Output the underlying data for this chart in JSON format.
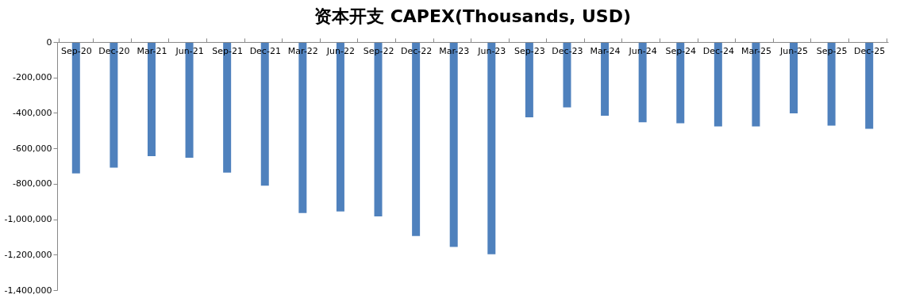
{
  "chart_data": {
    "type": "bar",
    "title": "资本开支 CAPEX(Thousands, USD)",
    "categories": [
      "Sep-20",
      "Dec-20",
      "Mar-21",
      "Jun-21",
      "Sep-21",
      "Dec-21",
      "Mar-22",
      "Jun-22",
      "Sep-22",
      "Dec-22",
      "Mar-23",
      "Jun-23",
      "Sep-23",
      "Dec-23",
      "Mar-24",
      "Jun-24",
      "Sep-24",
      "Dec-24",
      "Mar-25",
      "Jun-25",
      "Sep-25",
      "Dec-25"
    ],
    "values": [
      -741000,
      -709000,
      -644000,
      -653000,
      -737000,
      -811000,
      -965000,
      -956000,
      -984000,
      -1095000,
      -1156000,
      -1198000,
      -425000,
      -369000,
      -416000,
      -453000,
      -458000,
      -476000,
      -476000,
      -402000,
      -472000,
      -490000
    ],
    "color": "#4f81bd",
    "ylim": [
      -1400000,
      0
    ],
    "yticks": [
      0,
      {
        "value": -200000,
        "label": "-200,000"
      },
      {
        "value": -400000,
        "label": "-400,000"
      },
      {
        "value": -600000,
        "label": "-600,000"
      },
      {
        "value": -800000,
        "label": "-800,000"
      },
      {
        "value": -1000000,
        "label": "-1,000,000"
      },
      {
        "value": -1200000,
        "label": "-1,200,000"
      },
      {
        "value": -1400000,
        "label": "-1,400,000"
      }
    ],
    "grid": false
  }
}
